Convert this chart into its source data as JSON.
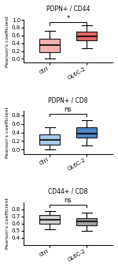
{
  "panels": [
    {
      "title": "PDPN+ / CD44",
      "ylabel": "Pearson's coefficient",
      "color_ctrl": "#f4a8a8",
      "color_treat": "#e05555",
      "ctrl_box": {
        "median": 0.35,
        "q1": 0.18,
        "q3": 0.52,
        "whislo": 0.0,
        "whishi": 0.72
      },
      "treat_box": {
        "median": 0.58,
        "q1": 0.48,
        "q3": 0.7,
        "whislo": 0.28,
        "whishi": 0.85
      },
      "sig_label": "*",
      "ylim": [
        -0.1,
        1.0
      ],
      "yticks": [
        0.0,
        0.2,
        0.4,
        0.6,
        0.8,
        1.0
      ],
      "xtick_labels": [
        "Ctrl",
        "GL6C-2"
      ]
    },
    {
      "title": "PDPN+ / CD8",
      "ylabel": "Pearson's coefficient",
      "color_ctrl": "#a0c4e8",
      "color_treat": "#3a7abf",
      "ctrl_box": {
        "median": 0.22,
        "q1": 0.12,
        "q3": 0.35,
        "whislo": 0.0,
        "whishi": 0.52
      },
      "treat_box": {
        "median": 0.38,
        "q1": 0.28,
        "q3": 0.52,
        "whislo": 0.1,
        "whishi": 0.68
      },
      "sig_label": "ns",
      "ylim": [
        -0.1,
        0.9
      ],
      "yticks": [
        0.0,
        0.2,
        0.4,
        0.6,
        0.8
      ],
      "xtick_labels": [
        "Ctrl",
        "GL6C-2"
      ]
    },
    {
      "title": "CD44+ / CD8",
      "ylabel": "Pearson's coefficient",
      "color_ctrl": "#cccccc",
      "color_treat": "#999999",
      "ctrl_box": {
        "median": 0.65,
        "q1": 0.6,
        "q3": 0.72,
        "whislo": 0.52,
        "whishi": 0.78
      },
      "treat_box": {
        "median": 0.63,
        "q1": 0.58,
        "q3": 0.68,
        "whislo": 0.5,
        "whishi": 0.75
      },
      "sig_label": "ns",
      "ylim": [
        0.3,
        0.9
      ],
      "yticks": [
        0.4,
        0.5,
        0.6,
        0.7,
        0.8
      ],
      "xtick_labels": [
        "Ctrl",
        "GL6C-2"
      ]
    }
  ],
  "fig_width": 1.5,
  "fig_height": 3.39,
  "dpi": 100
}
